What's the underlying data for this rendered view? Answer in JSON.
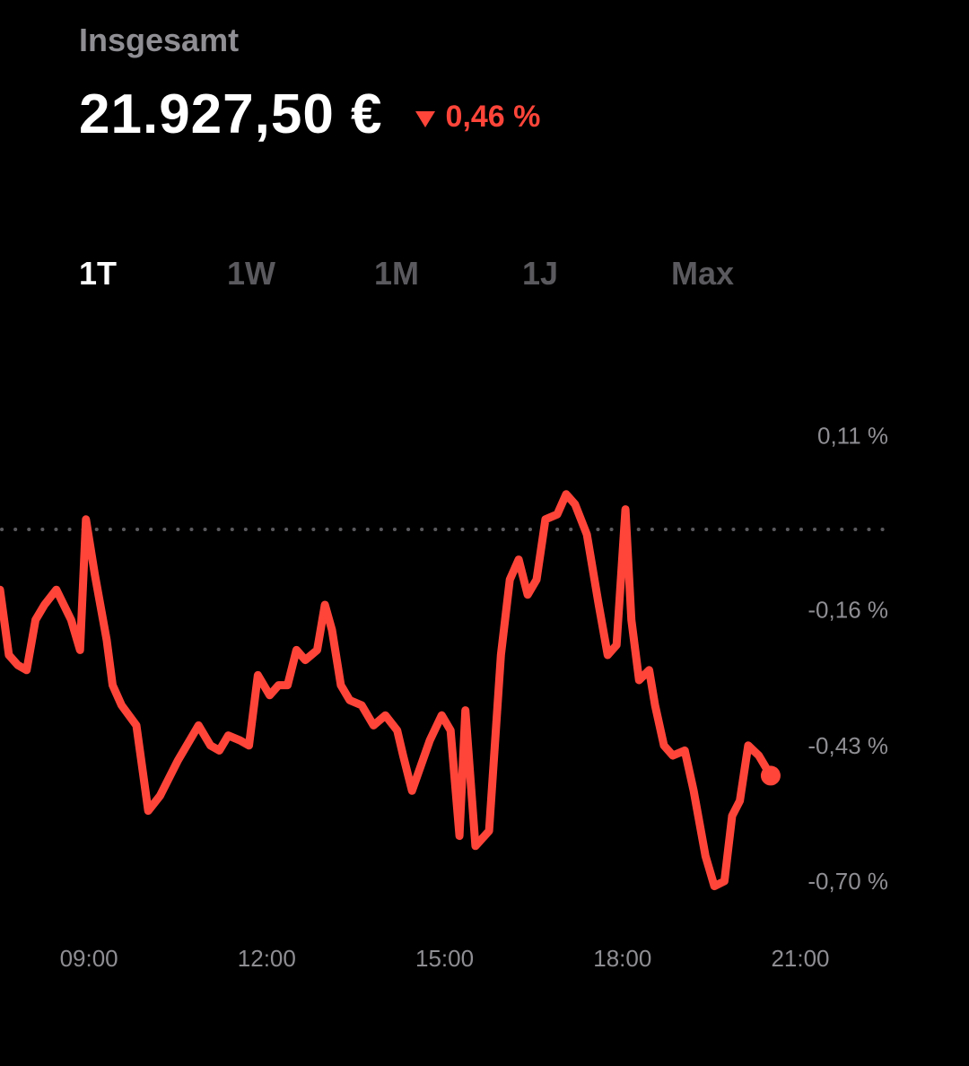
{
  "header": {
    "label": "Insgesamt",
    "value": "21.927,50 €",
    "change": "0,46 %",
    "change_direction": "down",
    "change_color": "#ff453a",
    "change_icon": "triangle-down-icon"
  },
  "tabs": [
    {
      "label": "1T",
      "active": true
    },
    {
      "label": "1W",
      "active": false
    },
    {
      "label": "1M",
      "active": false
    },
    {
      "label": "1J",
      "active": false
    },
    {
      "label": "Max",
      "active": false
    }
  ],
  "chart_data": {
    "type": "line",
    "x_unit": "hour of day",
    "x_ticks": [
      9,
      12,
      15,
      18,
      21
    ],
    "x_tick_labels": [
      "09:00",
      "12:00",
      "15:00",
      "18:00",
      "21:00"
    ],
    "y_ticks": [
      0.11,
      -0.16,
      -0.43,
      -0.7
    ],
    "y_tick_labels": [
      "0,11 %",
      "-0,16 %",
      "-0,43 %",
      "-0,70 %"
    ],
    "xlim": [
      7.5,
      21
    ],
    "ylim": [
      -0.8,
      0.2
    ],
    "baseline": 0.0,
    "grid": false,
    "line_color": "#ff453a",
    "series": [
      {
        "values": [
          [
            7.5,
            -0.12
          ],
          [
            7.65,
            -0.25
          ],
          [
            7.8,
            -0.27
          ],
          [
            7.95,
            -0.28
          ],
          [
            8.1,
            -0.18
          ],
          [
            8.25,
            -0.15
          ],
          [
            8.45,
            -0.12
          ],
          [
            8.7,
            -0.18
          ],
          [
            8.85,
            -0.24
          ],
          [
            8.95,
            0.02
          ],
          [
            9.1,
            -0.09
          ],
          [
            9.3,
            -0.22
          ],
          [
            9.4,
            -0.31
          ],
          [
            9.55,
            -0.35
          ],
          [
            9.8,
            -0.39
          ],
          [
            10.0,
            -0.56
          ],
          [
            10.2,
            -0.53
          ],
          [
            10.5,
            -0.46
          ],
          [
            10.85,
            -0.39
          ],
          [
            11.05,
            -0.43
          ],
          [
            11.2,
            -0.44
          ],
          [
            11.35,
            -0.41
          ],
          [
            11.55,
            -0.42
          ],
          [
            11.7,
            -0.43
          ],
          [
            11.85,
            -0.29
          ],
          [
            12.05,
            -0.33
          ],
          [
            12.2,
            -0.31
          ],
          [
            12.35,
            -0.31
          ],
          [
            12.5,
            -0.24
          ],
          [
            12.65,
            -0.26
          ],
          [
            12.85,
            -0.24
          ],
          [
            12.98,
            -0.15
          ],
          [
            13.1,
            -0.2
          ],
          [
            13.25,
            -0.31
          ],
          [
            13.4,
            -0.34
          ],
          [
            13.6,
            -0.35
          ],
          [
            13.8,
            -0.39
          ],
          [
            14.0,
            -0.37
          ],
          [
            14.2,
            -0.4
          ],
          [
            14.3,
            -0.45
          ],
          [
            14.45,
            -0.52
          ],
          [
            14.6,
            -0.47
          ],
          [
            14.75,
            -0.42
          ],
          [
            14.95,
            -0.37
          ],
          [
            15.1,
            -0.4
          ],
          [
            15.25,
            -0.61
          ],
          [
            15.35,
            -0.36
          ],
          [
            15.52,
            -0.63
          ],
          [
            15.75,
            -0.6
          ],
          [
            15.95,
            -0.25
          ],
          [
            16.1,
            -0.1
          ],
          [
            16.25,
            -0.06
          ],
          [
            16.4,
            -0.13
          ],
          [
            16.55,
            -0.1
          ],
          [
            16.7,
            0.02
          ],
          [
            16.9,
            0.03
          ],
          [
            17.05,
            0.07
          ],
          [
            17.2,
            0.05
          ],
          [
            17.4,
            -0.01
          ],
          [
            17.6,
            -0.15
          ],
          [
            17.75,
            -0.25
          ],
          [
            17.9,
            -0.23
          ],
          [
            18.0,
            -0.05
          ],
          [
            18.05,
            0.04
          ],
          [
            18.15,
            -0.18
          ],
          [
            18.28,
            -0.3
          ],
          [
            18.45,
            -0.28
          ],
          [
            18.55,
            -0.35
          ],
          [
            18.7,
            -0.43
          ],
          [
            18.85,
            -0.45
          ],
          [
            19.05,
            -0.44
          ],
          [
            19.2,
            -0.52
          ],
          [
            19.4,
            -0.65
          ],
          [
            19.55,
            -0.71
          ],
          [
            19.72,
            -0.7
          ],
          [
            19.85,
            -0.57
          ],
          [
            19.98,
            -0.54
          ],
          [
            20.12,
            -0.43
          ],
          [
            20.3,
            -0.45
          ],
          [
            20.5,
            -0.49
          ]
        ]
      }
    ]
  }
}
